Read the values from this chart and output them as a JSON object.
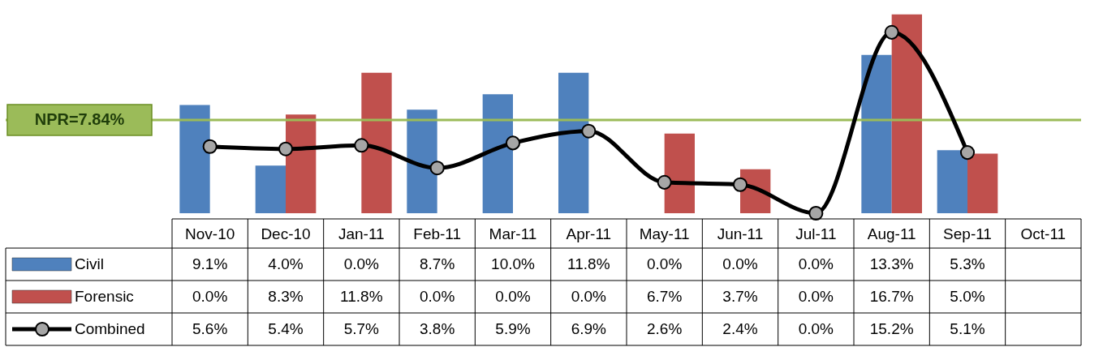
{
  "chart_data": {
    "type": "bar",
    "categories": [
      "Nov-10",
      "Dec-10",
      "Jan-11",
      "Feb-11",
      "Mar-11",
      "Apr-11",
      "May-11",
      "Jun-11",
      "Jul-11",
      "Aug-11",
      "Sep-11",
      "Oct-11"
    ],
    "series": [
      {
        "name": "Civil",
        "color": "#4f81bd",
        "values": [
          9.1,
          4.0,
          0.0,
          8.7,
          10.0,
          11.8,
          0.0,
          0.0,
          0.0,
          13.3,
          5.3,
          null
        ],
        "value_labels": [
          "9.1%",
          "4.0%",
          "0.0%",
          "8.7%",
          "10.0%",
          "11.8%",
          "0.0%",
          "0.0%",
          "0.0%",
          "13.3%",
          "5.3%",
          null
        ]
      },
      {
        "name": "Forensic",
        "color": "#c0504d",
        "values": [
          0.0,
          8.3,
          11.8,
          0.0,
          0.0,
          0.0,
          6.7,
          3.7,
          0.0,
          16.7,
          5.0,
          null
        ],
        "value_labels": [
          "0.0%",
          "8.3%",
          "11.8%",
          "0.0%",
          "0.0%",
          "0.0%",
          "6.7%",
          "3.7%",
          "0.0%",
          "16.7%",
          "5.0%",
          null
        ]
      },
      {
        "name": "Combined",
        "type": "line",
        "color": "#000000",
        "values": [
          5.6,
          5.4,
          5.7,
          3.8,
          5.9,
          6.9,
          2.6,
          2.4,
          0.0,
          15.2,
          5.1,
          null
        ],
        "value_labels": [
          "5.6%",
          "5.4%",
          "5.7%",
          "3.8%",
          "5.9%",
          "6.9%",
          "2.6%",
          "2.4%",
          "0.0%",
          "15.2%",
          "5.1%",
          null
        ],
        "marker": "circle",
        "line_style": "solid"
      }
    ],
    "ref_lines": [
      {
        "axis": "y",
        "value": 7.84,
        "label": "NPR=7.84%",
        "color": "#9bbb59"
      }
    ],
    "legend": "bottom left",
    "grid": false
  }
}
